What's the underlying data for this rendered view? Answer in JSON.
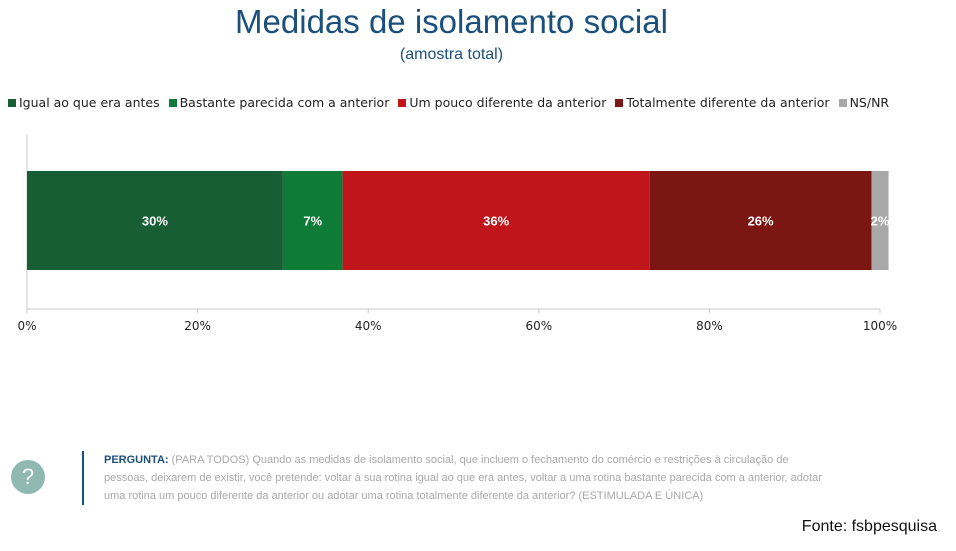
{
  "title": "Medidas de isolamento social",
  "subtitle": "(amostra total)",
  "colors": {
    "title": "#1b4f7c",
    "series": [
      "#175e35",
      "#0e7b37",
      "#c0161b",
      "#7b1613",
      "#a8a8a8"
    ]
  },
  "chart_data": {
    "type": "bar",
    "orientation": "horizontal",
    "stacked": true,
    "categories": [
      ""
    ],
    "series": [
      {
        "name": "Igual ao que era antes",
        "values": [
          30
        ],
        "label": "30%",
        "color": "#175e35"
      },
      {
        "name": "Bastante parecida com a anterior",
        "values": [
          7
        ],
        "label": "7%",
        "color": "#0e7b37"
      },
      {
        "name": "Um pouco diferente da anterior",
        "values": [
          36
        ],
        "label": "36%",
        "color": "#c0161b"
      },
      {
        "name": "Totalmente diferente da anterior",
        "values": [
          26
        ],
        "label": "26%",
        "color": "#7b1613"
      },
      {
        "name": "NS/NR",
        "values": [
          2
        ],
        "label": "2%",
        "color": "#a8a8a8"
      }
    ],
    "xlim": [
      0,
      100
    ],
    "xticks": [
      "0%",
      "20%",
      "40%",
      "60%",
      "80%",
      "100%"
    ],
    "legend_position": "top",
    "grid": false
  },
  "question": {
    "label": "PERGUNTA:",
    "text": " (PARA TODOS) Quando as medidas de isolamento social, que incluem o fechamento do comércio e restrições à circulação de pessoas, deixarem de existir, você pretende: voltar à sua rotina igual ao que era antes, voltar a uma rotina bastante parecida com a anterior, adotar uma rotina um pouco diferente da anterior ou adotar uma rotina totalmente diferente da anterior? (ESTIMULADA E ÚNICA)"
  },
  "help_icon": {
    "glyph": "?",
    "name": "question-mark-icon"
  },
  "source": "Fonte: fsbpesquisa"
}
